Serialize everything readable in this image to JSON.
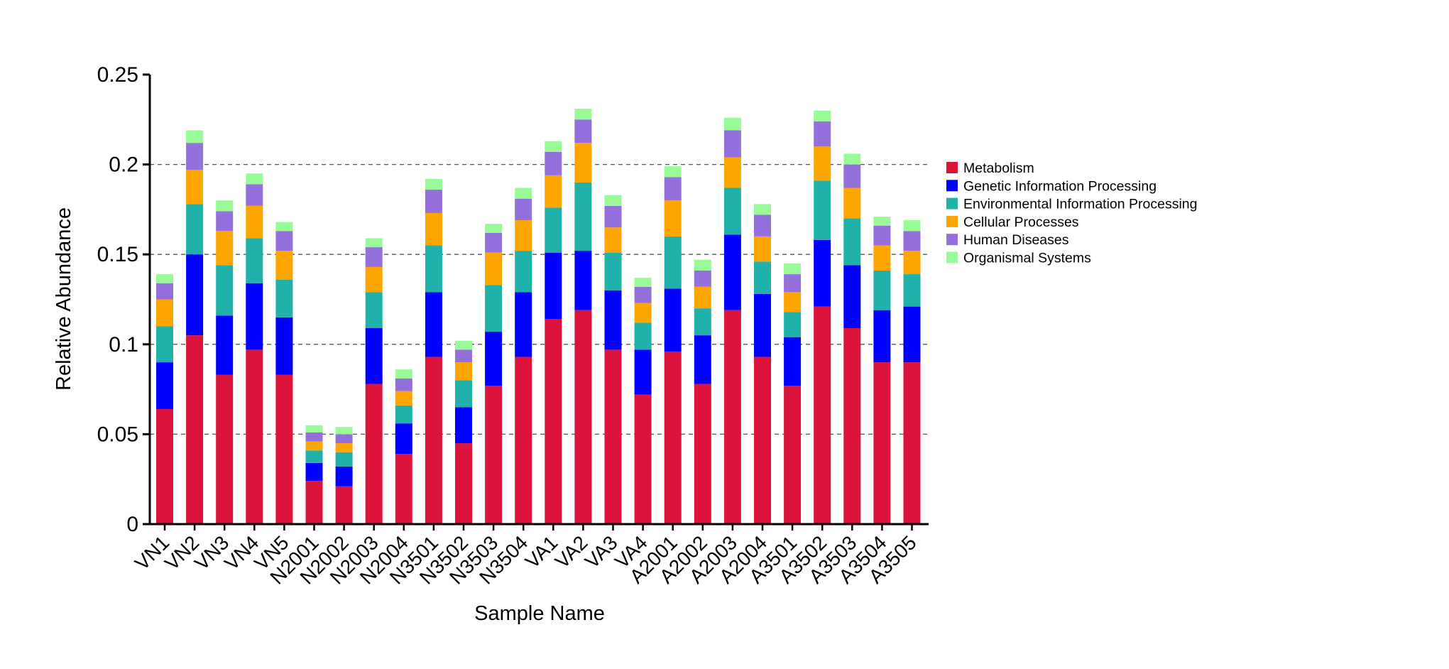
{
  "chart_data": {
    "type": "bar",
    "stacked": true,
    "title": "",
    "xlabel": "Sample Name",
    "ylabel": "Relative Abundance",
    "ylim": [
      0,
      0.25
    ],
    "yticks": [
      0,
      0.05,
      0.1,
      0.15,
      0.2,
      0.25
    ],
    "ytick_labels": [
      "0",
      "0.05",
      "0.1",
      "0.15",
      "0.2",
      "0.25"
    ],
    "grid": "horizontal dashed",
    "legend_position": "right",
    "categories": [
      "VN1",
      "VN2",
      "VN3",
      "VN4",
      "VN5",
      "N2001",
      "N2002",
      "N2003",
      "N2004",
      "N3501",
      "N3502",
      "N3503",
      "N3504",
      "VA1",
      "VA2",
      "VA3",
      "VA4",
      "A2001",
      "A2002",
      "A2003",
      "A2004",
      "A3501",
      "A3502",
      "A3503",
      "A3504",
      "A3505"
    ],
    "series": [
      {
        "name": "Metabolism",
        "color": "#DC143C",
        "values": [
          0.064,
          0.105,
          0.083,
          0.097,
          0.083,
          0.024,
          0.021,
          0.078,
          0.039,
          0.093,
          0.045,
          0.077,
          0.093,
          0.114,
          0.119,
          0.097,
          0.072,
          0.096,
          0.078,
          0.119,
          0.093,
          0.077,
          0.121,
          0.109,
          0.09,
          0.09
        ]
      },
      {
        "name": "Genetic Information Processing",
        "color": "#0000FF",
        "values": [
          0.026,
          0.045,
          0.033,
          0.037,
          0.032,
          0.01,
          0.011,
          0.031,
          0.017,
          0.036,
          0.02,
          0.03,
          0.036,
          0.037,
          0.033,
          0.033,
          0.025,
          0.035,
          0.027,
          0.042,
          0.035,
          0.027,
          0.037,
          0.035,
          0.029,
          0.031
        ]
      },
      {
        "name": "Environmental Information Processing",
        "color": "#20B2AA",
        "values": [
          0.02,
          0.028,
          0.028,
          0.025,
          0.021,
          0.007,
          0.008,
          0.02,
          0.01,
          0.026,
          0.015,
          0.026,
          0.023,
          0.025,
          0.038,
          0.021,
          0.015,
          0.029,
          0.015,
          0.026,
          0.018,
          0.014,
          0.033,
          0.026,
          0.022,
          0.018
        ]
      },
      {
        "name": "Cellular Processes",
        "color": "#FFA500",
        "values": [
          0.015,
          0.019,
          0.019,
          0.018,
          0.016,
          0.005,
          0.005,
          0.014,
          0.008,
          0.018,
          0.01,
          0.018,
          0.017,
          0.018,
          0.022,
          0.014,
          0.011,
          0.02,
          0.012,
          0.017,
          0.014,
          0.011,
          0.019,
          0.017,
          0.014,
          0.013
        ]
      },
      {
        "name": "Human Diseases",
        "color": "#9370DB",
        "values": [
          0.009,
          0.015,
          0.011,
          0.012,
          0.011,
          0.005,
          0.005,
          0.011,
          0.007,
          0.013,
          0.007,
          0.011,
          0.012,
          0.013,
          0.013,
          0.012,
          0.009,
          0.013,
          0.009,
          0.015,
          0.012,
          0.01,
          0.014,
          0.013,
          0.011,
          0.011
        ]
      },
      {
        "name": "Organismal Systems",
        "color": "#98FB98",
        "values": [
          0.005,
          0.007,
          0.006,
          0.006,
          0.005,
          0.004,
          0.004,
          0.005,
          0.005,
          0.006,
          0.005,
          0.005,
          0.006,
          0.006,
          0.006,
          0.006,
          0.005,
          0.006,
          0.006,
          0.007,
          0.006,
          0.006,
          0.006,
          0.006,
          0.005,
          0.006
        ]
      }
    ]
  }
}
